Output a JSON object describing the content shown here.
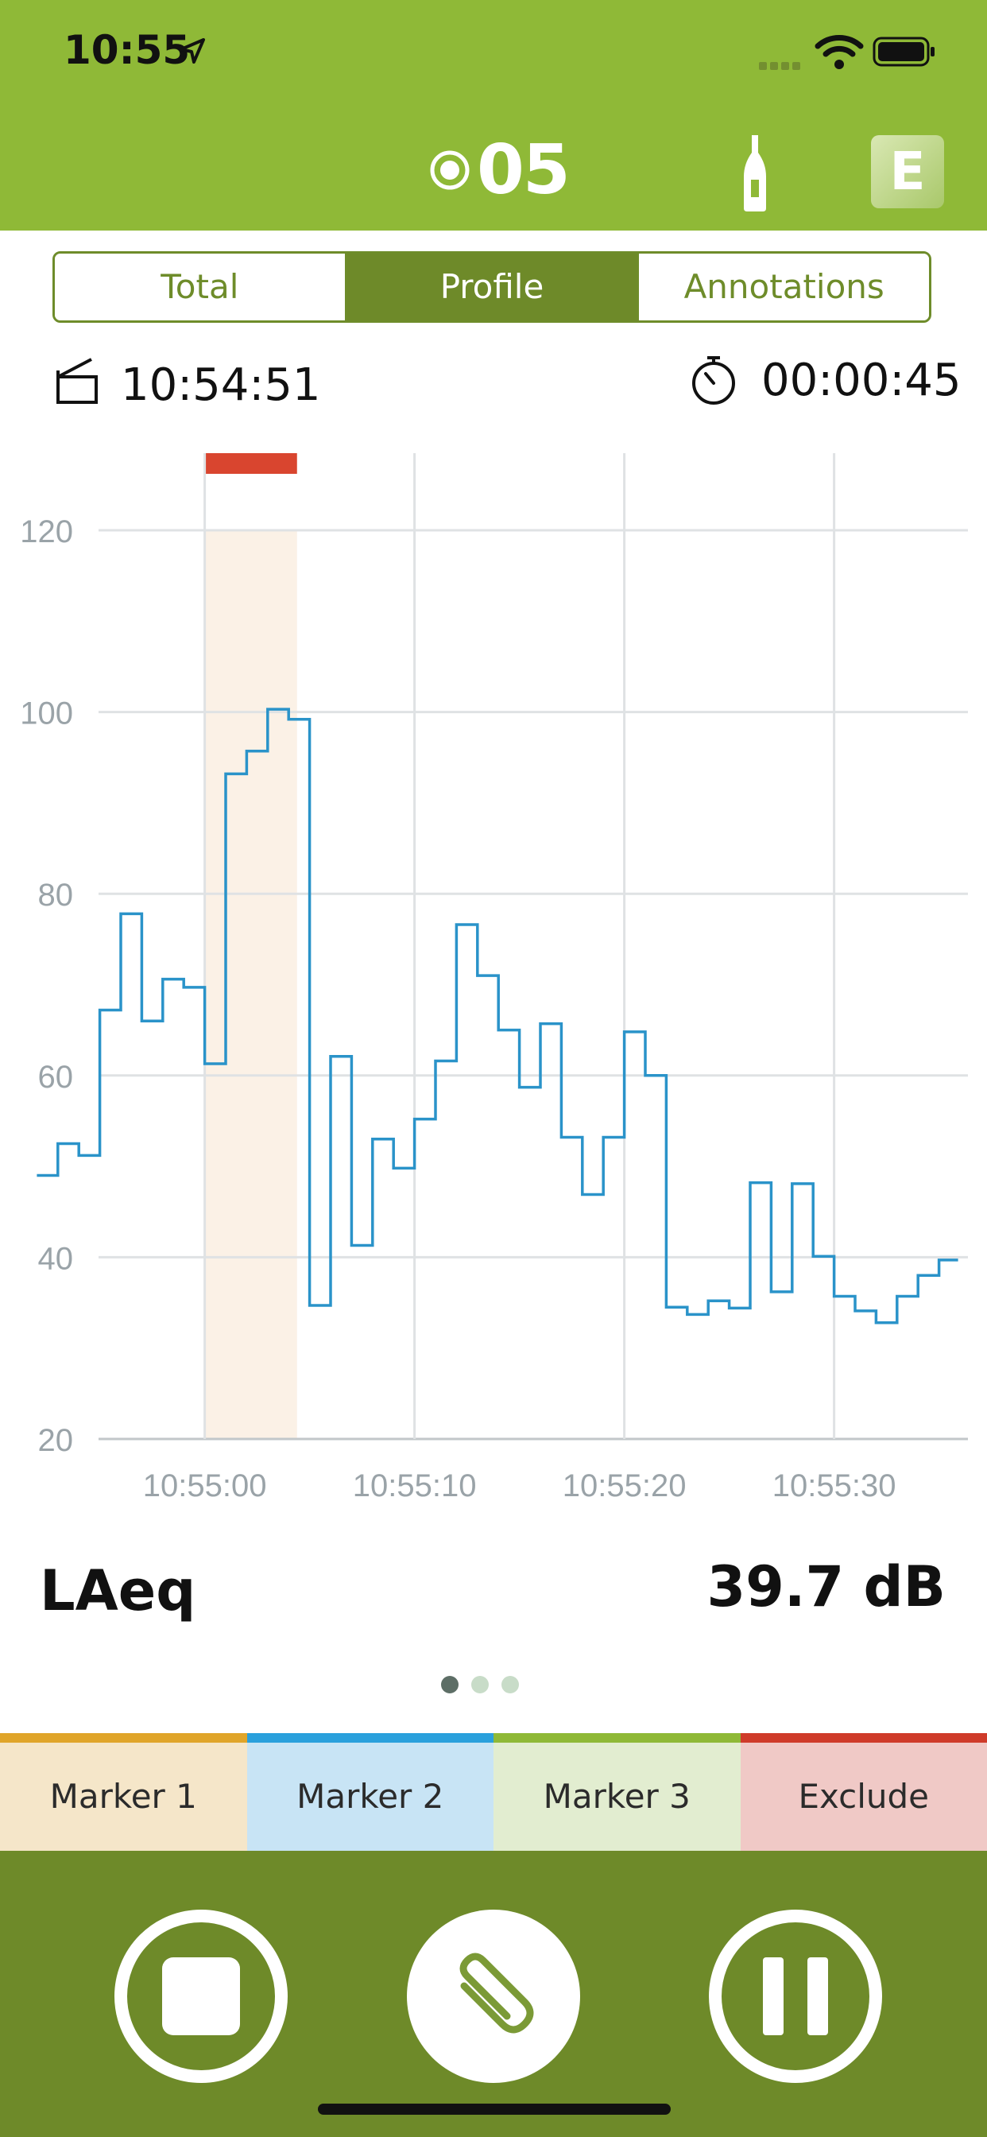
{
  "status_bar": {
    "time": "10:55"
  },
  "header": {
    "recording_number": "05",
    "profile_letter": "E"
  },
  "tabs": [
    {
      "label": "Total",
      "active": false
    },
    {
      "label": "Profile",
      "active": true
    },
    {
      "label": "Annotations",
      "active": false
    }
  ],
  "timing": {
    "start_time": "10:54:51",
    "elapsed": "00:00:45"
  },
  "chart_data": {
    "type": "line",
    "step": true,
    "ylim": [
      20,
      120
    ],
    "yticks": [
      "20",
      "40",
      "60",
      "80",
      "100",
      "120"
    ],
    "xlim": [
      "10:54:51",
      "10:55:36"
    ],
    "xticks": [
      "10:55:00",
      "10:55:10",
      "10:55:20",
      "10:55:30"
    ],
    "grid": true,
    "line_color": "#2a93c9",
    "highlight": {
      "start": "10:55:00",
      "end": "10:55:04.4",
      "color": "#d9452f"
    },
    "x": [
      "10:54:52",
      "10:54:53",
      "10:54:54",
      "10:54:55",
      "10:54:56",
      "10:54:57",
      "10:54:58",
      "10:54:59",
      "10:55:00",
      "10:55:01",
      "10:55:02",
      "10:55:03",
      "10:55:04",
      "10:55:05",
      "10:55:06",
      "10:55:07",
      "10:55:08",
      "10:55:09",
      "10:55:10",
      "10:55:11",
      "10:55:12",
      "10:55:13",
      "10:55:14",
      "10:55:15",
      "10:55:16",
      "10:55:17",
      "10:55:18",
      "10:55:19",
      "10:55:20",
      "10:55:21",
      "10:55:22",
      "10:55:23",
      "10:55:24",
      "10:55:25",
      "10:55:26",
      "10:55:27",
      "10:55:28",
      "10:55:29",
      "10:55:30",
      "10:55:31",
      "10:55:32",
      "10:55:33",
      "10:55:34",
      "10:55:35"
    ],
    "y": [
      49,
      52.5,
      51.2,
      67.2,
      77.8,
      66,
      70.6,
      69.7,
      61.3,
      93.2,
      95.7,
      100.3,
      99.2,
      34.7,
      62.1,
      41.3,
      53,
      49.8,
      55.2,
      61.6,
      76.6,
      71,
      65,
      58.7,
      65.7,
      53.2,
      46.9,
      53.2,
      64.8,
      60,
      34.5,
      33.7,
      35.2,
      34.4,
      48.2,
      36.2,
      48.1,
      40.1,
      35.7,
      34.1,
      32.8,
      35.7,
      38,
      39.7
    ]
  },
  "reading": {
    "metric": "LAeq",
    "value": "39.7 dB"
  },
  "markers": [
    "Marker 1",
    "Marker 2",
    "Marker 3",
    "Exclude"
  ]
}
